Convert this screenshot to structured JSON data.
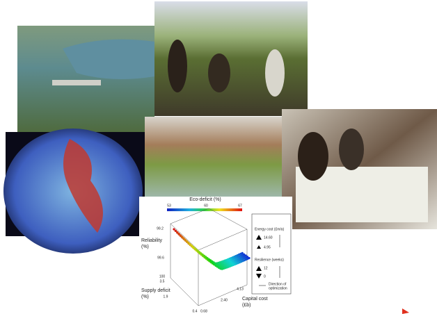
{
  "chart_panel": {
    "colorbar_title": "Eco-deficit (%)",
    "colorbar_labels": [
      "53",
      "60",
      "67"
    ],
    "reliability_label": [
      "Reliability",
      "(%)"
    ],
    "reliability_ticks": [
      "99.2",
      "99.6",
      "100"
    ],
    "supply_label": [
      "Supply deficit",
      "(%)"
    ],
    "supply_ticks": [
      "3.5",
      "1.9",
      "0.4"
    ],
    "capital_label": [
      "Capital cost",
      "(£b)"
    ],
    "capital_ticks": [
      "0.68",
      "2.40",
      "4.13"
    ],
    "legend": {
      "energy_title": "Energy cost (£m/a)",
      "energy_values": [
        "14.60",
        "4.95"
      ],
      "resilience_title": "Resilience (weeks)",
      "resilience_values": [
        "12",
        "0"
      ],
      "direction": [
        "Direction of",
        "optimization"
      ]
    }
  }
}
